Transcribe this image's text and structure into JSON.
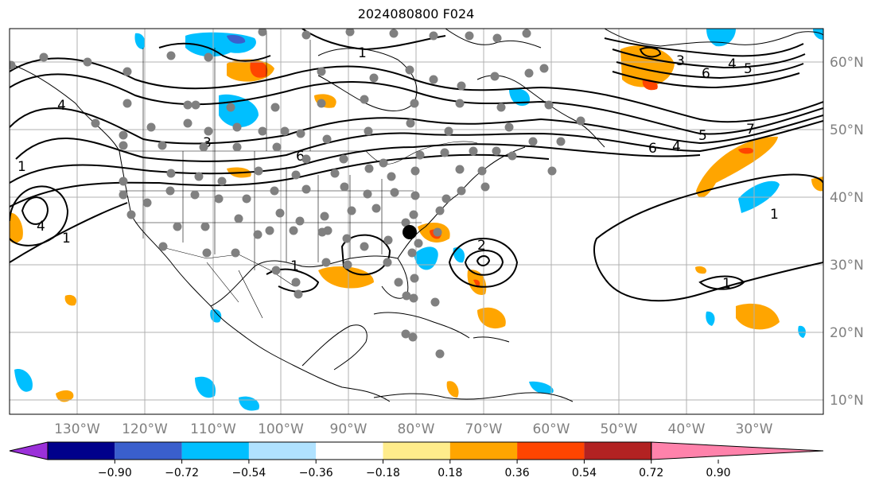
{
  "title": "2024080800 F024",
  "axes": {
    "lon_labels": [
      "130°W",
      "120°W",
      "110°W",
      "100°W",
      "90°W",
      "80°W",
      "70°W",
      "60°W",
      "50°W",
      "40°W",
      "30°W"
    ],
    "lat_labels": [
      "60°N",
      "50°N",
      "40°N",
      "30°N",
      "20°N",
      "10°N"
    ],
    "extent": {
      "lon_min": -137,
      "lon_max": -25,
      "lat_min": 8,
      "lat_max": 65
    },
    "grid": true
  },
  "colorbar": {
    "ticks": [
      "−0.90",
      "−0.72",
      "−0.54",
      "−0.36",
      "−0.18",
      "0.18",
      "0.36",
      "0.54",
      "0.72",
      "0.90"
    ],
    "colors": [
      "#9b30d9",
      "#00008b",
      "#3a5fcd",
      "#00bfff",
      "#b0e2ff",
      "#ffffff",
      "#ffec8b",
      "#ffa500",
      "#ff4500",
      "#b22222",
      "#ff82ab"
    ],
    "extend": "both"
  },
  "contour_labels": [
    "1",
    "2",
    "3",
    "4",
    "5",
    "6",
    "7"
  ],
  "highlight_point": {
    "lon": -80.5,
    "lat": 35.2,
    "color": "#000000"
  },
  "stations_color": "#808080",
  "colors": {
    "fill_blue": "#00bfff",
    "fill_orange": "#ffa500",
    "fill_red": "#ff4500"
  }
}
